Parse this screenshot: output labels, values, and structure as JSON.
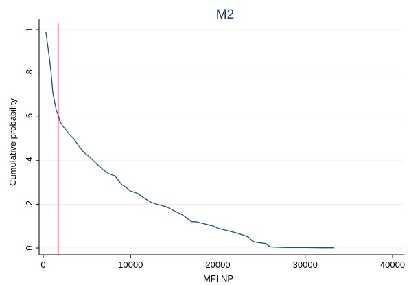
{
  "chart_data": {
    "type": "line",
    "title": "M2",
    "xlabel": "MFI NP",
    "ylabel": "Cumulative probability",
    "xlim": [
      0,
      40000
    ],
    "ylim": [
      0,
      1
    ],
    "x_ticks": [
      {
        "value": 0,
        "label": "0"
      },
      {
        "value": 10000,
        "label": "10000"
      },
      {
        "value": 20000,
        "label": "20000"
      },
      {
        "value": 30000,
        "label": "30000"
      },
      {
        "value": 40000,
        "label": "40000"
      }
    ],
    "y_ticks": [
      {
        "value": 0,
        "label": "0"
      },
      {
        "value": 0.2,
        "label": ".2"
      },
      {
        "value": 0.4,
        "label": ".4"
      },
      {
        "value": 0.6,
        "label": ".6"
      },
      {
        "value": 0.8,
        "label": ".8"
      },
      {
        "value": 1,
        "label": "1"
      }
    ],
    "grid": true,
    "reference_line": {
      "x": 1700,
      "color": "#c4003a"
    },
    "series": [
      {
        "color": "#1f4e6e",
        "x": [
          300,
          500,
          700,
          900,
          1100,
          1300,
          1500,
          1700,
          1900,
          2200,
          2600,
          3000,
          3500,
          4000,
          4600,
          5200,
          6000,
          6800,
          7500,
          8200,
          9000,
          9400,
          10000,
          10800,
          11500,
          12300,
          13000,
          14000,
          15000,
          16000,
          17000,
          17500,
          18500,
          19500,
          20000,
          21000,
          22000,
          22800,
          23500,
          24000,
          24500,
          25500,
          25800,
          26000,
          26500,
          27000,
          28000,
          30000,
          32000,
          33300
        ],
        "y": [
          0.99,
          0.93,
          0.87,
          0.8,
          0.71,
          0.67,
          0.63,
          0.61,
          0.58,
          0.56,
          0.54,
          0.52,
          0.5,
          0.47,
          0.44,
          0.42,
          0.39,
          0.36,
          0.34,
          0.33,
          0.29,
          0.28,
          0.26,
          0.25,
          0.23,
          0.21,
          0.2,
          0.19,
          0.17,
          0.15,
          0.12,
          0.12,
          0.11,
          0.1,
          0.09,
          0.08,
          0.07,
          0.06,
          0.05,
          0.03,
          0.025,
          0.02,
          0.01,
          0.005,
          0.004,
          0.003,
          0.002,
          0.002,
          0.001,
          0.001
        ]
      }
    ]
  }
}
